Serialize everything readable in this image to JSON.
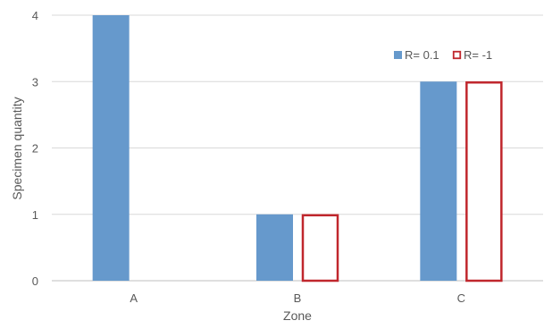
{
  "chart_data": {
    "type": "bar",
    "title": "",
    "xlabel": "Zone",
    "ylabel": "Specimen quantity",
    "categories": [
      "A",
      "B",
      "C"
    ],
    "ylim": [
      0,
      4
    ],
    "yticks": [
      "0",
      "1",
      "2",
      "3",
      "4"
    ],
    "grid": true,
    "legend_position": "top-right",
    "series": [
      {
        "name": "R= 0.1",
        "values": [
          4,
          1,
          3
        ],
        "color": "#6699cc",
        "style": "filled"
      },
      {
        "name": "R= -1",
        "values": [
          0,
          1,
          3
        ],
        "color": "#c0272d",
        "style": "outline"
      }
    ]
  }
}
